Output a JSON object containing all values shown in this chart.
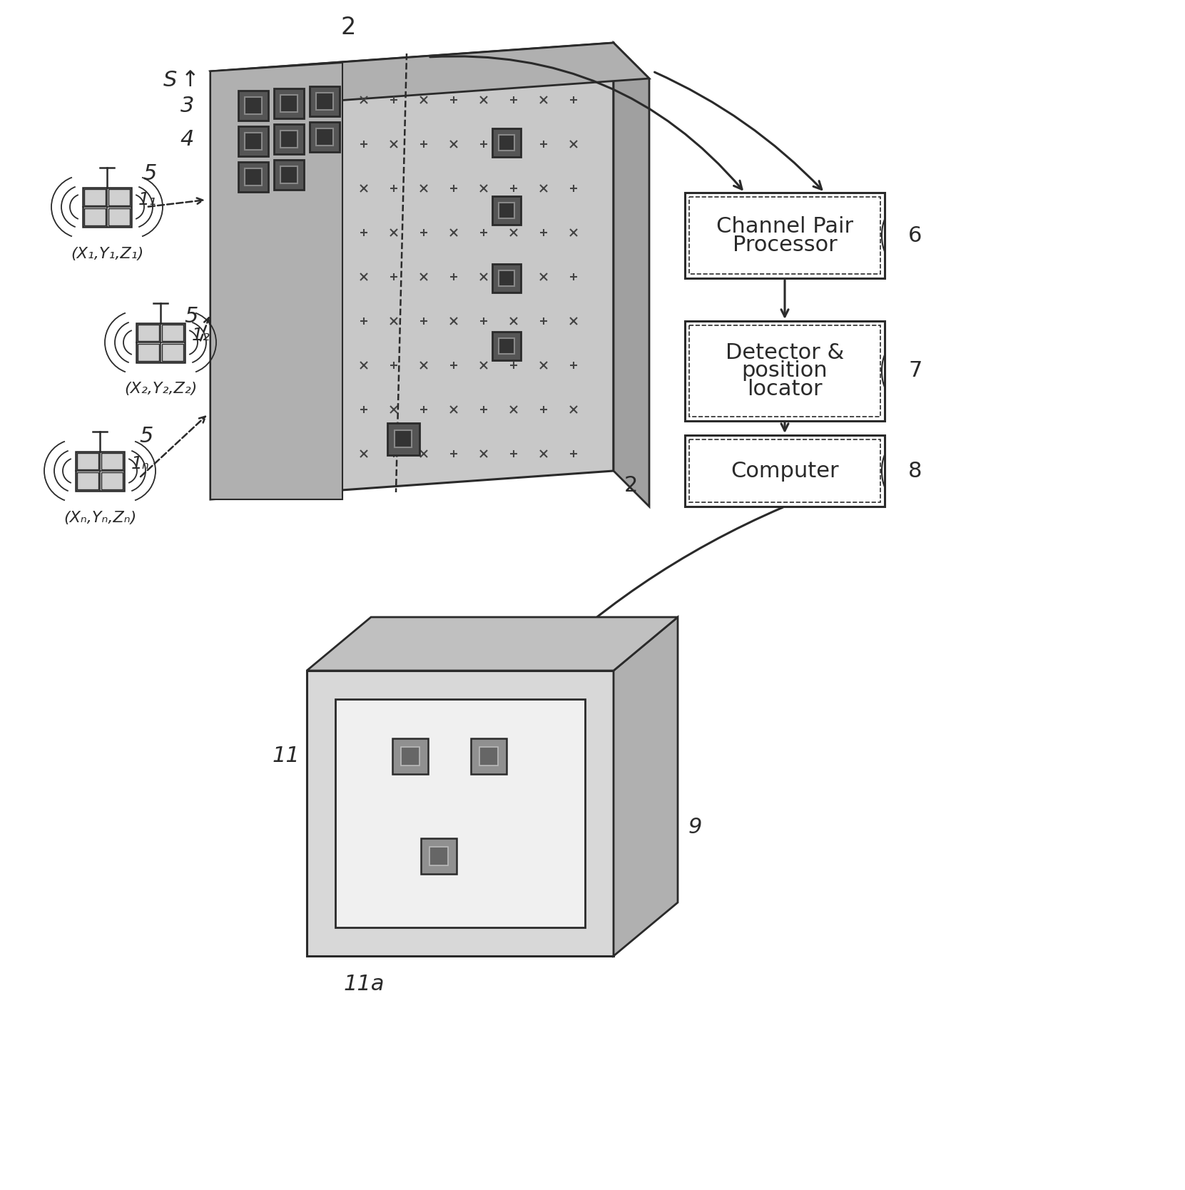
{
  "bg_color": "#ffffff",
  "line_color": "#2a2a2a",
  "boxes": [
    {
      "label": "Channel Pair\nProcessor",
      "ref": "6"
    },
    {
      "label": "Detector &\nposition\nlocator",
      "ref": "7"
    },
    {
      "label": "Computer",
      "ref": "8"
    }
  ],
  "transmitters": [
    {
      "label": "1",
      "sub": "1",
      "coords": "(X₁,Y₁,Z₁)"
    },
    {
      "label": "1",
      "sub": "2",
      "coords": "(X₂,Y₂,Z₂)"
    },
    {
      "label": "1",
      "sub": "N",
      "coords": "(Xₙ,Yₙ,Zₙ)"
    }
  ]
}
